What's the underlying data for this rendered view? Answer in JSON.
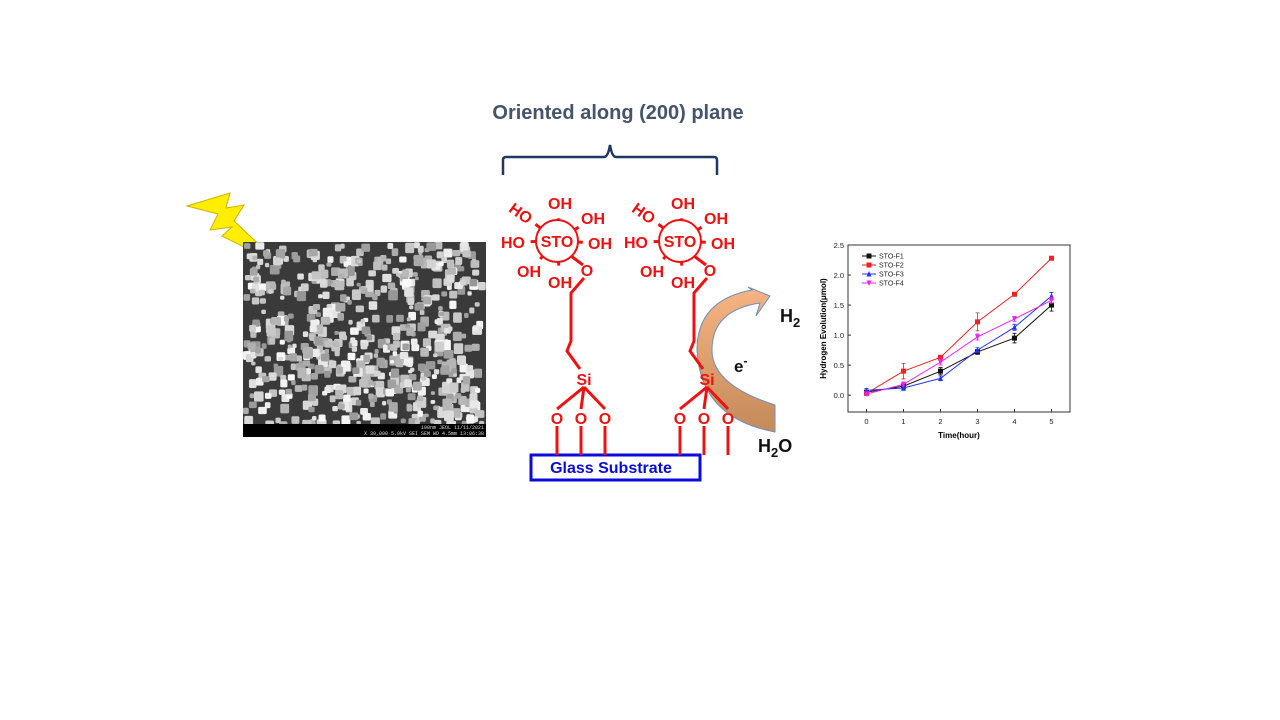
{
  "heading": "Oriented along (200) plane",
  "sem_image": {
    "scale_info": "100nm  JEOL   11/11/2021",
    "settings_info": "X 30,000   5.0kV  SEI   SEM   WD 4.5mm  13:06:38"
  },
  "molecules": [
    {
      "center": "STO",
      "groups": [
        "OH",
        "OH",
        "OH",
        "OH",
        "OH",
        "HO",
        "HO"
      ],
      "linker": "O",
      "silicon": "Si",
      "anchors": [
        "O",
        "O",
        "O"
      ]
    },
    {
      "center": "STO",
      "groups": [
        "OH",
        "OH",
        "OH",
        "OH",
        "OH",
        "HO",
        "HO"
      ],
      "linker": "O",
      "silicon": "Si",
      "anchors": [
        "O",
        "O",
        "O"
      ]
    }
  ],
  "substrate": "Glass Substrate",
  "product": {
    "base": "H",
    "sub": "2"
  },
  "electron": {
    "base": "e",
    "sup": "-"
  },
  "reactant": {
    "base": "H",
    "sub": "2",
    "rest": "O"
  },
  "chart_data": {
    "type": "line",
    "x_label": "Time(hour)",
    "y_label": "Hydrogen Evolution(μmol)",
    "x": [
      0,
      1,
      2,
      3,
      4,
      5
    ],
    "xlim": [
      -0.5,
      5.5
    ],
    "xticks": [
      0,
      1,
      2,
      3,
      4,
      5
    ],
    "ylim": [
      -0.28,
      2.5
    ],
    "yticks": [
      {
        "value": 0,
        "label": "0.0"
      },
      0.5,
      {
        "value": 1,
        "label": "1.0"
      },
      1.5,
      {
        "value": 2,
        "label": "2.0"
      },
      2.5
    ],
    "legend": "upper-left",
    "series": [
      {
        "name": "STO-F1",
        "color": "#111111",
        "marker": "square",
        "values": [
          0.05,
          0.15,
          0.4,
          0.72,
          0.95,
          1.5
        ],
        "errors": [
          0.03,
          0.05,
          0.06,
          0.04,
          0.08,
          0.1
        ]
      },
      {
        "name": "STO-F2",
        "color": "#ee2222",
        "marker": "square",
        "values": [
          0.03,
          0.4,
          0.63,
          1.22,
          1.68,
          2.28
        ],
        "errors": [
          0.02,
          0.13,
          0.03,
          0.15,
          0.03,
          0.02
        ]
      },
      {
        "name": "STO-F3",
        "color": "#2233ee",
        "marker": "triangle-up",
        "values": [
          0.08,
          0.12,
          0.28,
          0.75,
          1.13,
          1.65
        ],
        "errors": [
          0.03,
          0.04,
          0.04,
          0.04,
          0.05,
          0.06
        ]
      },
      {
        "name": "STO-F4",
        "color": "#ee22ee",
        "marker": "triangle-down",
        "values": [
          0.02,
          0.18,
          0.55,
          0.97,
          1.27,
          1.58
        ],
        "errors": [
          0.02,
          0.04,
          0.05,
          0.05,
          0.04,
          0.05
        ]
      }
    ]
  }
}
